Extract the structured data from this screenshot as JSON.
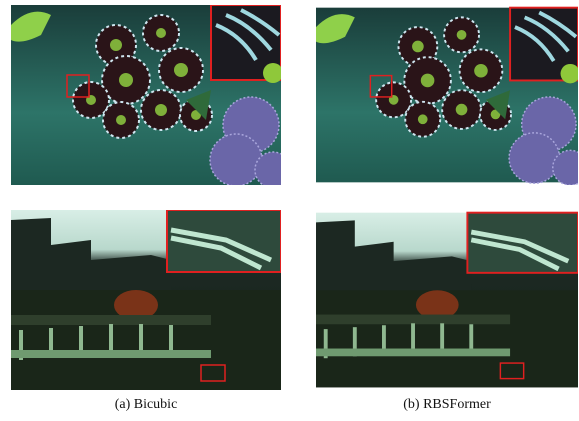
{
  "captions": [
    "(a) Bicubic",
    "(b) RBSFormer"
  ]
}
